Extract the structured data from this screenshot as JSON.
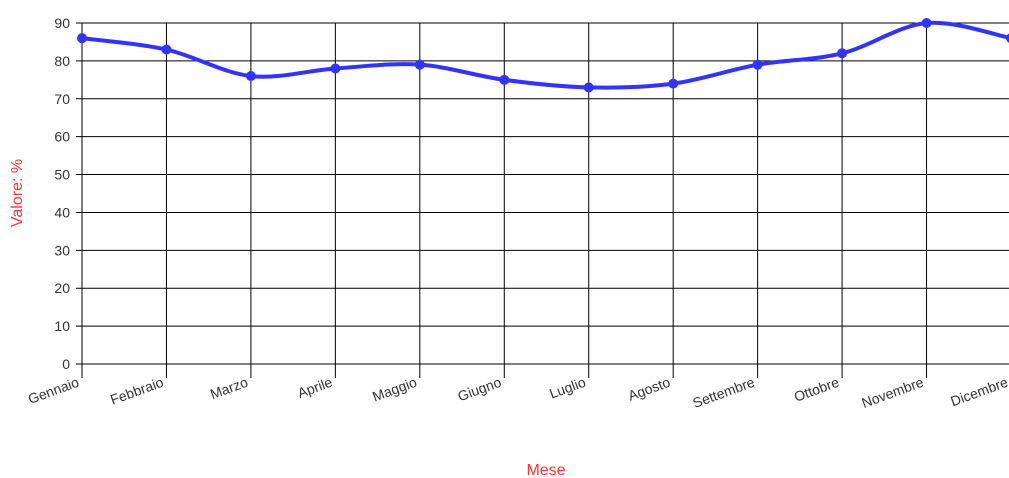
{
  "chart_data": {
    "type": "line",
    "categories": [
      "Gennaio",
      "Febbraio",
      "Marzo",
      "Aprile",
      "Maggio",
      "Giugno",
      "Luglio",
      "Agosto",
      "Settembre",
      "Ottobre",
      "Novembre",
      "Dicembre"
    ],
    "series": [
      {
        "values": [
          86,
          83,
          76,
          78,
          79,
          75,
          73,
          74,
          79,
          82,
          90,
          86
        ]
      }
    ],
    "xlabel": "Mese",
    "ylabel": "Valore: %",
    "ylim": [
      0,
      90
    ],
    "yticks": [
      0,
      10,
      20,
      30,
      40,
      50,
      60,
      70,
      80,
      90
    ],
    "grid": true,
    "smooth": true,
    "colors": {
      "line": "#3333ff",
      "axis_title": "#ff3333",
      "grid": "#000000"
    }
  }
}
